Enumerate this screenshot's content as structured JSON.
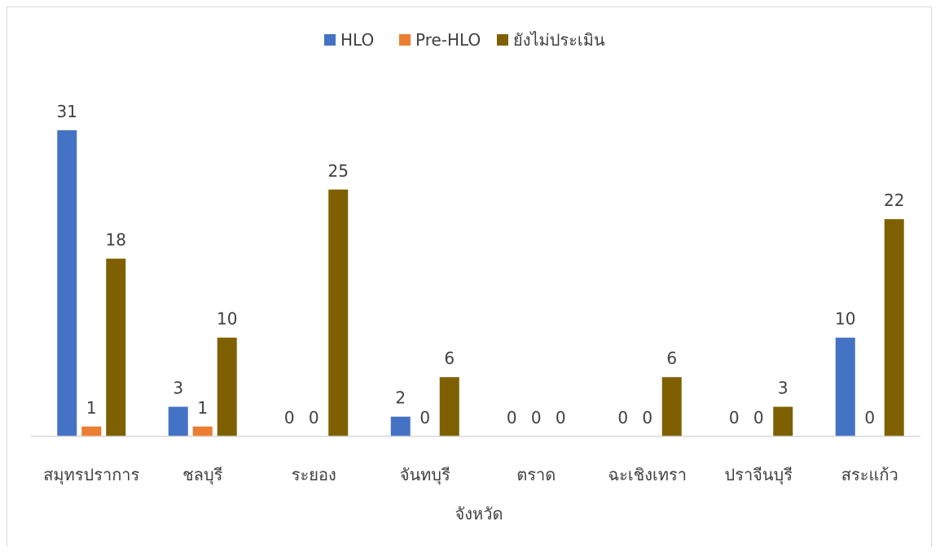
{
  "chart_data": {
    "type": "bar",
    "categories": [
      "สมุทรปราการ",
      "ชลบุรี",
      "ระยอง",
      "จันทบุรี",
      "ตราด",
      "ฉะเชิงเทรา",
      "ปราจีนบุรี",
      "สระแก้ว"
    ],
    "series": [
      {
        "name": "HLO",
        "color": "#4472C4",
        "values": [
          31,
          3,
          0,
          2,
          0,
          0,
          0,
          10
        ]
      },
      {
        "name": "Pre-HLO",
        "color": "#ED7D31",
        "values": [
          1,
          1,
          0,
          0,
          0,
          0,
          0,
          0
        ]
      },
      {
        "name": "ยังไม่ประเมิน",
        "color": "#7F6000",
        "values": [
          18,
          10,
          25,
          6,
          0,
          6,
          3,
          22
        ]
      }
    ],
    "title": "",
    "xlabel": "จังหวัด",
    "ylabel": "",
    "ylim": [
      0,
      31
    ],
    "grid": false,
    "legend_position": "top"
  }
}
